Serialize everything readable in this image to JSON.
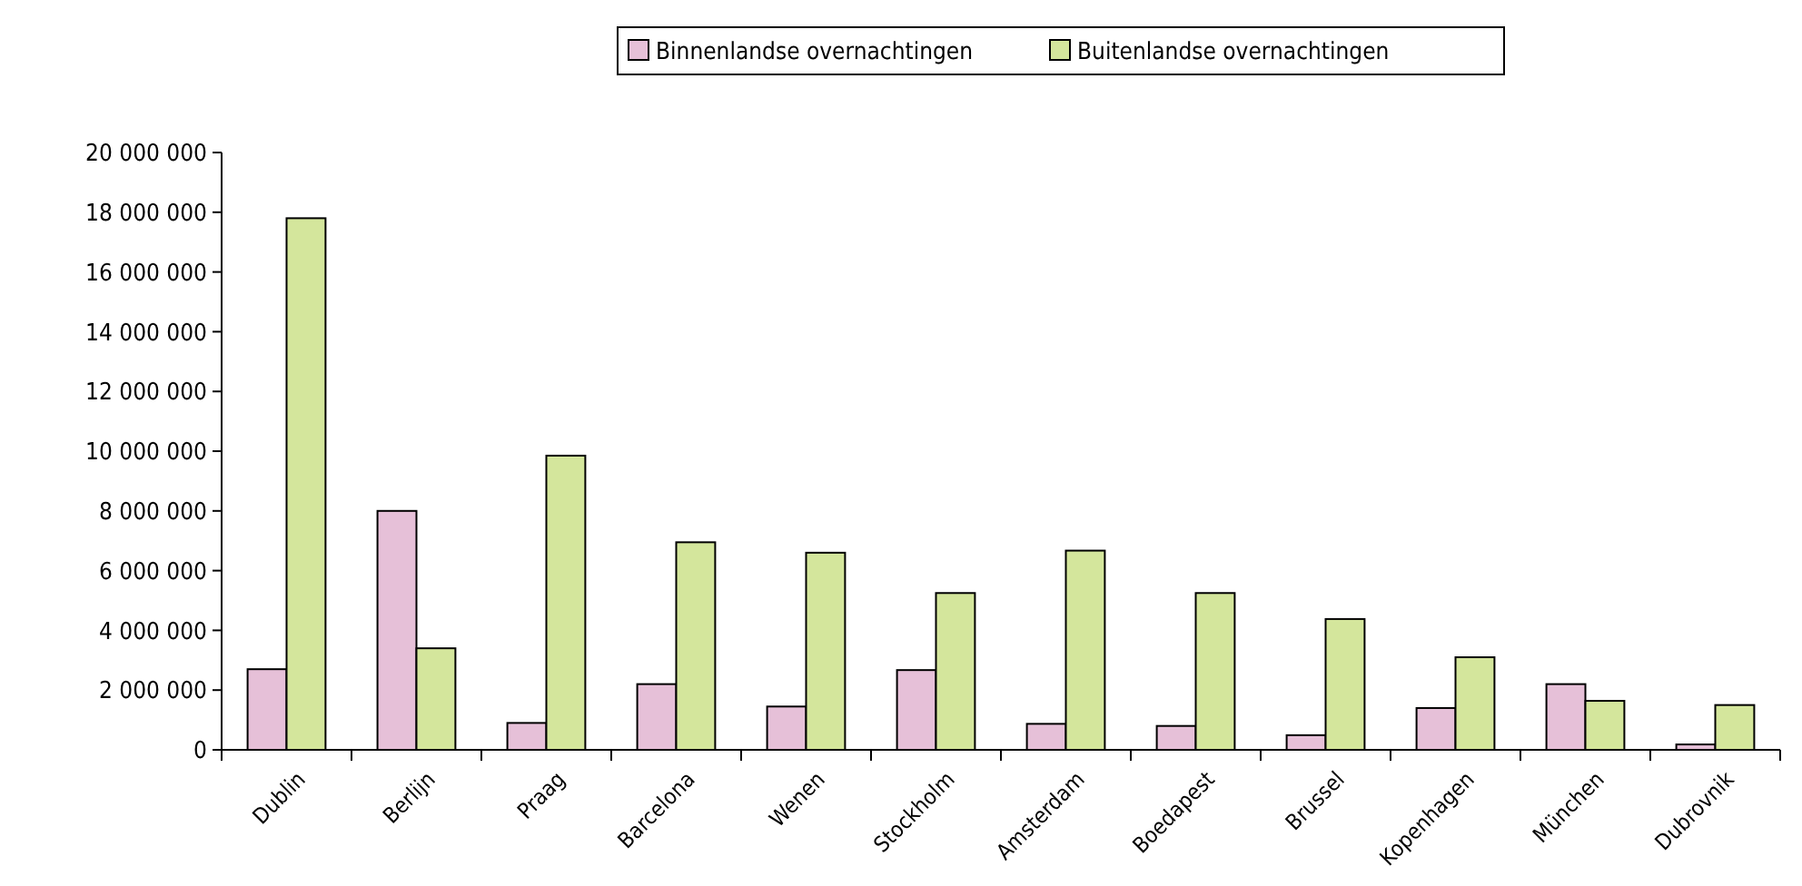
{
  "chart_data": {
    "type": "bar",
    "categories": [
      "Dublin",
      "Berlijn",
      "Praag",
      "Barcelona",
      "Wenen",
      "Stockholm",
      "Amsterdam",
      "Boedapest",
      "Brussel",
      "Kopenhagen",
      "München",
      "Dubrovnik"
    ],
    "series": [
      {
        "name": "Binnenlandse overnachtingen",
        "color": "#e6c0d8",
        "values": [
          2700000,
          8000000,
          900000,
          2200000,
          1450000,
          2670000,
          870000,
          800000,
          490000,
          1400000,
          2200000,
          180000
        ]
      },
      {
        "name": "Buitenlandse overnachtingen",
        "color": "#d4e69c",
        "values": [
          17800000,
          3400000,
          9850000,
          6950000,
          6600000,
          5250000,
          6670000,
          5250000,
          4380000,
          3100000,
          1640000,
          1500000
        ]
      }
    ],
    "ylim": [
      0,
      20000000
    ],
    "yticks": [
      {
        "value": 0,
        "label": "0"
      },
      {
        "value": 2000000,
        "label": "2 000 000"
      },
      {
        "value": 4000000,
        "label": "4 000 000"
      },
      {
        "value": 6000000,
        "label": "6 000 000"
      },
      {
        "value": 8000000,
        "label": "8 000 000"
      },
      {
        "value": 10000000,
        "label": "10 000 000"
      },
      {
        "value": 12000000,
        "label": "12 000 000"
      },
      {
        "value": 14000000,
        "label": "14 000 000"
      },
      {
        "value": 16000000,
        "label": "16 000 000"
      },
      {
        "value": 18000000,
        "label": "18 000 000"
      },
      {
        "value": 20000000,
        "label": "20 000 000"
      }
    ],
    "grid": false,
    "legend": "top"
  }
}
